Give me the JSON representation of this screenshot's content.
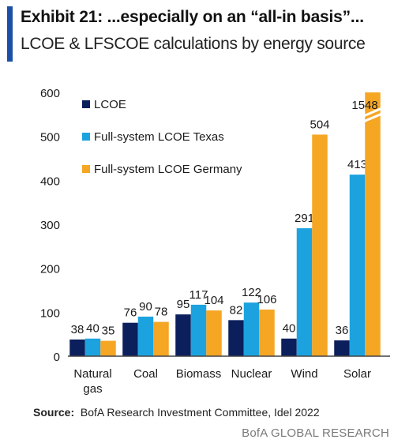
{
  "header": {
    "title": "Exhibit 21: ...especially on an “all-in basis”...",
    "subtitle": "LCOE & LFSCOE calculations by energy source"
  },
  "footer": {
    "source_label": "Source:",
    "source_text": "BofA Research Investment Committee,  Idel 2022",
    "brand": "BofA GLOBAL RESEARCH"
  },
  "chart_data": {
    "type": "bar",
    "categories": [
      "Natural gas",
      "Coal",
      "Biomass",
      "Nuclear",
      "Wind",
      "Solar"
    ],
    "series": [
      {
        "name": "LCOE",
        "color": "#0b1f5c",
        "values": [
          38,
          76,
          95,
          82,
          40,
          36
        ]
      },
      {
        "name": "Full-system LCOE Texas",
        "color": "#1ca3df",
        "values": [
          40,
          90,
          117,
          122,
          291,
          413
        ]
      },
      {
        "name": "Full-system LCOE Germany",
        "color": "#f5a623",
        "values": [
          35,
          78,
          104,
          106,
          504,
          1548
        ]
      }
    ],
    "ylim": [
      0,
      600
    ],
    "yticks": [
      0,
      100,
      200,
      300,
      400,
      500,
      600
    ],
    "axis_break": {
      "category": "Solar",
      "series": "Full-system LCOE Germany"
    },
    "legend_position": "top-left",
    "grid": false
  }
}
